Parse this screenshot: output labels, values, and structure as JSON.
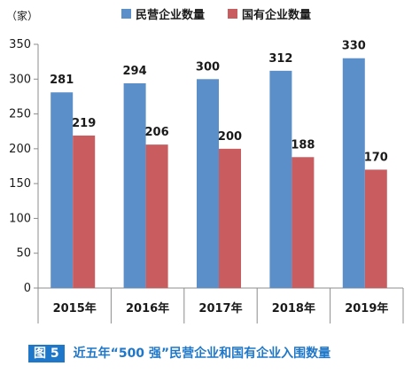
{
  "chart_data": {
    "type": "bar",
    "unit_label": "（家）",
    "categories": [
      "2015年",
      "2016年",
      "2017年",
      "2018年",
      "2019年"
    ],
    "series": [
      {
        "name": "民营企业数量",
        "color": "#5b8fc9",
        "values": [
          281,
          294,
          300,
          312,
          330
        ]
      },
      {
        "name": "国有企业数量",
        "color": "#c95c5f",
        "values": [
          219,
          206,
          200,
          188,
          170
        ]
      }
    ],
    "ylim": [
      0,
      350
    ],
    "yticks": [
      0,
      50,
      100,
      150,
      200,
      250,
      300,
      350
    ],
    "grid": false,
    "legend_position": "top"
  },
  "caption": {
    "badge": "图 5",
    "text": "近五年“500 强”民营企业和国有企业入围数量"
  }
}
